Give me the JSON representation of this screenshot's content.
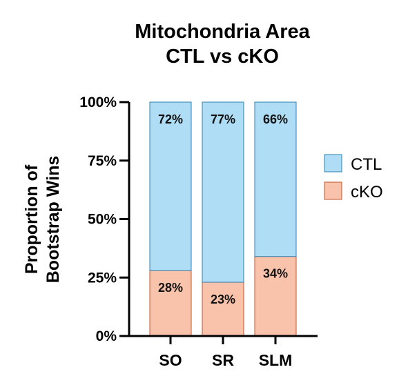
{
  "chart_data": {
    "type": "bar",
    "stacked": true,
    "title_lines": [
      "Mitochondria Area",
      "CTL vs cKO"
    ],
    "ylabel_lines": [
      "Proportion of",
      "Bootstrap Wins"
    ],
    "xlabel": "",
    "categories": [
      "SO",
      "SR",
      "SLM"
    ],
    "ylim": [
      0,
      100
    ],
    "yticks": [
      0,
      25,
      50,
      75,
      100
    ],
    "ytick_labels": [
      "0%",
      "25%",
      "50%",
      "75%",
      "100%"
    ],
    "series": [
      {
        "name": "cKO",
        "values": [
          28,
          23,
          34
        ],
        "labels": [
          "28%",
          "23%",
          "34%"
        ],
        "color": "#F9C3AB",
        "stroke": "#C0562B"
      },
      {
        "name": "CTL",
        "values": [
          72,
          77,
          66
        ],
        "labels": [
          "72%",
          "77%",
          "66%"
        ],
        "color": "#AEDDF5",
        "stroke": "#2E7FB0"
      }
    ],
    "legend": {
      "position": "right",
      "entries": [
        "CTL",
        "cKO"
      ]
    },
    "grid": false
  }
}
